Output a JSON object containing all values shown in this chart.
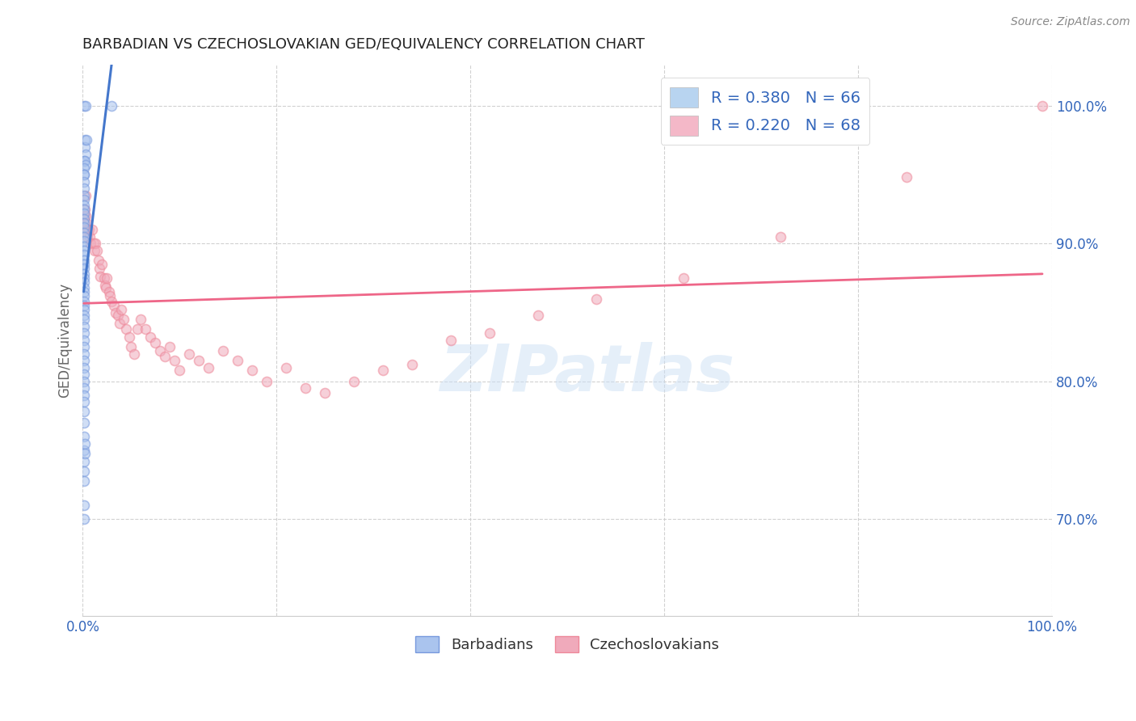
{
  "title": "BARBADIAN VS CZECHOSLOVAKIAN GED/EQUIVALENCY CORRELATION CHART",
  "source": "Source: ZipAtlas.com",
  "ylabel": "GED/Equivalency",
  "watermark": "ZIPatlas",
  "xlim": [
    0.0,
    1.0
  ],
  "ylim": [
    0.63,
    1.03
  ],
  "ytick_positions": [
    0.7,
    0.8,
    0.9,
    1.0
  ],
  "ytick_labels": [
    "70.0%",
    "80.0%",
    "90.0%",
    "100.0%"
  ],
  "legend_entries": [
    {
      "label": "R = 0.380   N = 66",
      "color": "#b8d4f0"
    },
    {
      "label": "R = 0.220   N = 68",
      "color": "#f4b8c8"
    }
  ],
  "legend_labels_bottom": [
    "Barbadians",
    "Czechoslovakians"
  ],
  "blue_line_color": "#4477cc",
  "pink_line_color": "#ee6688",
  "blue_face_color": "#aac4ee",
  "pink_face_color": "#f0aabb",
  "blue_edge_color": "#7799dd",
  "pink_edge_color": "#ee8899",
  "background_color": "#ffffff",
  "grid_color": "#cccccc",
  "marker_size": 75,
  "marker_alpha": 0.55,
  "barbadian_x": [
    0.001,
    0.003,
    0.002,
    0.002,
    0.004,
    0.003,
    0.001,
    0.002,
    0.003,
    0.03,
    0.001,
    0.001,
    0.001,
    0.001,
    0.001,
    0.001,
    0.001,
    0.001,
    0.001,
    0.001,
    0.001,
    0.001,
    0.001,
    0.001,
    0.001,
    0.001,
    0.001,
    0.001,
    0.001,
    0.001,
    0.001,
    0.001,
    0.001,
    0.001,
    0.001,
    0.001,
    0.001,
    0.001,
    0.001,
    0.001,
    0.001,
    0.001,
    0.001,
    0.001,
    0.001,
    0.001,
    0.001,
    0.001,
    0.001,
    0.001,
    0.001,
    0.001,
    0.001,
    0.001,
    0.001,
    0.001,
    0.001,
    0.001,
    0.001,
    0.001,
    0.001,
    0.001,
    0.002,
    0.002,
    0.001,
    0.001
  ],
  "barbadian_y": [
    1.0,
    1.0,
    0.975,
    0.97,
    0.975,
    0.965,
    0.96,
    0.96,
    0.957,
    1.0,
    0.955,
    0.95,
    0.95,
    0.945,
    0.94,
    0.935,
    0.932,
    0.928,
    0.925,
    0.922,
    0.918,
    0.915,
    0.912,
    0.908,
    0.905,
    0.902,
    0.898,
    0.895,
    0.892,
    0.888,
    0.885,
    0.882,
    0.878,
    0.875,
    0.872,
    0.868,
    0.865,
    0.862,
    0.858,
    0.855,
    0.852,
    0.848,
    0.845,
    0.84,
    0.835,
    0.83,
    0.825,
    0.82,
    0.815,
    0.81,
    0.805,
    0.8,
    0.795,
    0.79,
    0.785,
    0.778,
    0.77,
    0.76,
    0.75,
    0.742,
    0.735,
    0.728,
    0.755,
    0.748,
    0.71,
    0.7
  ],
  "czech_x": [
    0.001,
    0.001,
    0.002,
    0.003,
    0.003,
    0.004,
    0.005,
    0.005,
    0.006,
    0.007,
    0.008,
    0.01,
    0.011,
    0.012,
    0.013,
    0.015,
    0.016,
    0.017,
    0.018,
    0.02,
    0.022,
    0.023,
    0.024,
    0.025,
    0.027,
    0.028,
    0.03,
    0.032,
    0.034,
    0.036,
    0.038,
    0.04,
    0.042,
    0.045,
    0.048,
    0.05,
    0.053,
    0.056,
    0.06,
    0.065,
    0.07,
    0.075,
    0.08,
    0.085,
    0.09,
    0.095,
    0.1,
    0.11,
    0.12,
    0.13,
    0.145,
    0.16,
    0.175,
    0.19,
    0.21,
    0.23,
    0.25,
    0.28,
    0.31,
    0.34,
    0.38,
    0.42,
    0.47,
    0.53,
    0.62,
    0.72,
    0.85,
    0.99
  ],
  "czech_y": [
    0.915,
    0.92,
    0.925,
    0.935,
    0.92,
    0.915,
    0.91,
    0.905,
    0.91,
    0.905,
    0.9,
    0.91,
    0.9,
    0.895,
    0.9,
    0.895,
    0.888,
    0.882,
    0.876,
    0.885,
    0.875,
    0.87,
    0.868,
    0.875,
    0.865,
    0.862,
    0.858,
    0.855,
    0.85,
    0.848,
    0.842,
    0.852,
    0.845,
    0.838,
    0.832,
    0.825,
    0.82,
    0.838,
    0.845,
    0.838,
    0.832,
    0.828,
    0.822,
    0.818,
    0.825,
    0.815,
    0.808,
    0.82,
    0.815,
    0.81,
    0.822,
    0.815,
    0.808,
    0.8,
    0.81,
    0.795,
    0.792,
    0.8,
    0.808,
    0.812,
    0.83,
    0.835,
    0.848,
    0.86,
    0.875,
    0.905,
    0.948,
    1.0
  ]
}
